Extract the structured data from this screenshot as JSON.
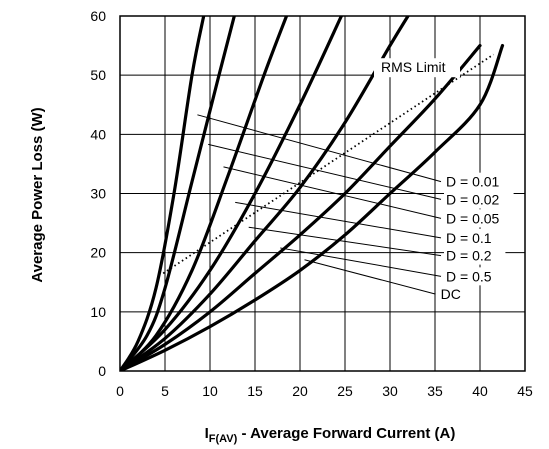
{
  "chart_data": {
    "type": "line",
    "xlabel": {
      "main": "I",
      "sub": "F(AV)",
      "rest": " - Average Forward Current (A)"
    },
    "ylabel": "Average Power Loss (W)",
    "xlim": [
      0,
      45
    ],
    "ylim": [
      0,
      60
    ],
    "x_ticks": [
      0,
      5,
      10,
      15,
      20,
      25,
      30,
      35,
      40,
      45
    ],
    "y_ticks": [
      0,
      10,
      20,
      30,
      40,
      50,
      60
    ],
    "grid": true,
    "rms_limit": {
      "label": "RMS Limit",
      "style": "dotted",
      "points": [
        [
          4.8,
          16.5
        ],
        [
          41.5,
          53.5
        ]
      ]
    },
    "series": [
      {
        "name": "D = 0.01",
        "points": [
          [
            0,
            0
          ],
          [
            2,
            5
          ],
          [
            4,
            14
          ],
          [
            6,
            30
          ],
          [
            8,
            50
          ],
          [
            9.3,
            60
          ]
        ]
      },
      {
        "name": "D = 0.02",
        "points": [
          [
            0,
            0
          ],
          [
            3,
            6
          ],
          [
            5,
            14
          ],
          [
            8,
            32
          ],
          [
            11,
            50
          ],
          [
            12.7,
            60
          ]
        ]
      },
      {
        "name": "D = 0.05",
        "points": [
          [
            0,
            0
          ],
          [
            4,
            6
          ],
          [
            8,
            17
          ],
          [
            12,
            33
          ],
          [
            16,
            50
          ],
          [
            18.5,
            60
          ]
        ]
      },
      {
        "name": "D = 0.1",
        "points": [
          [
            0,
            0
          ],
          [
            5,
            7
          ],
          [
            10,
            17
          ],
          [
            15,
            30
          ],
          [
            20,
            45
          ],
          [
            24.6,
            60
          ]
        ]
      },
      {
        "name": "D = 0.2",
        "points": [
          [
            0,
            0
          ],
          [
            5,
            5.5
          ],
          [
            10,
            13
          ],
          [
            15,
            22
          ],
          [
            20,
            31
          ],
          [
            25,
            42
          ],
          [
            30,
            55
          ],
          [
            32,
            60
          ]
        ]
      },
      {
        "name": "D = 0.5",
        "points": [
          [
            0,
            0
          ],
          [
            5,
            4.5
          ],
          [
            10,
            10
          ],
          [
            15,
            16.5
          ],
          [
            20,
            23
          ],
          [
            25,
            30
          ],
          [
            30,
            38
          ],
          [
            35,
            46
          ],
          [
            40,
            55
          ]
        ]
      },
      {
        "name": "DC",
        "points": [
          [
            0,
            0
          ],
          [
            5,
            3.5
          ],
          [
            10,
            7.5
          ],
          [
            15,
            12
          ],
          [
            20,
            17
          ],
          [
            25,
            23
          ],
          [
            30,
            30
          ],
          [
            35,
            37
          ],
          [
            40,
            45
          ],
          [
            42.5,
            55
          ]
        ]
      }
    ],
    "label_anchors": [
      {
        "name": "D = 0.01",
        "from": [
          8.6,
          43.3
        ],
        "label_at": [
          36,
          32
        ]
      },
      {
        "name": "D = 0.02",
        "from": [
          9.8,
          38.3
        ],
        "label_at": [
          36,
          29
        ]
      },
      {
        "name": "D = 0.05",
        "from": [
          11.5,
          34.5
        ],
        "label_at": [
          36,
          25.8
        ]
      },
      {
        "name": "D = 0.1",
        "from": [
          12.8,
          28.5
        ],
        "label_at": [
          36,
          22.5
        ]
      },
      {
        "name": "D = 0.2",
        "from": [
          14.3,
          24.3
        ],
        "label_at": [
          36,
          19.5
        ]
      },
      {
        "name": "D = 0.5",
        "from": [
          17.8,
          20.8
        ],
        "label_at": [
          36,
          16
        ]
      },
      {
        "name": "DC",
        "from": [
          20.5,
          18.8
        ],
        "label_at": [
          35.4,
          13
        ]
      }
    ]
  }
}
